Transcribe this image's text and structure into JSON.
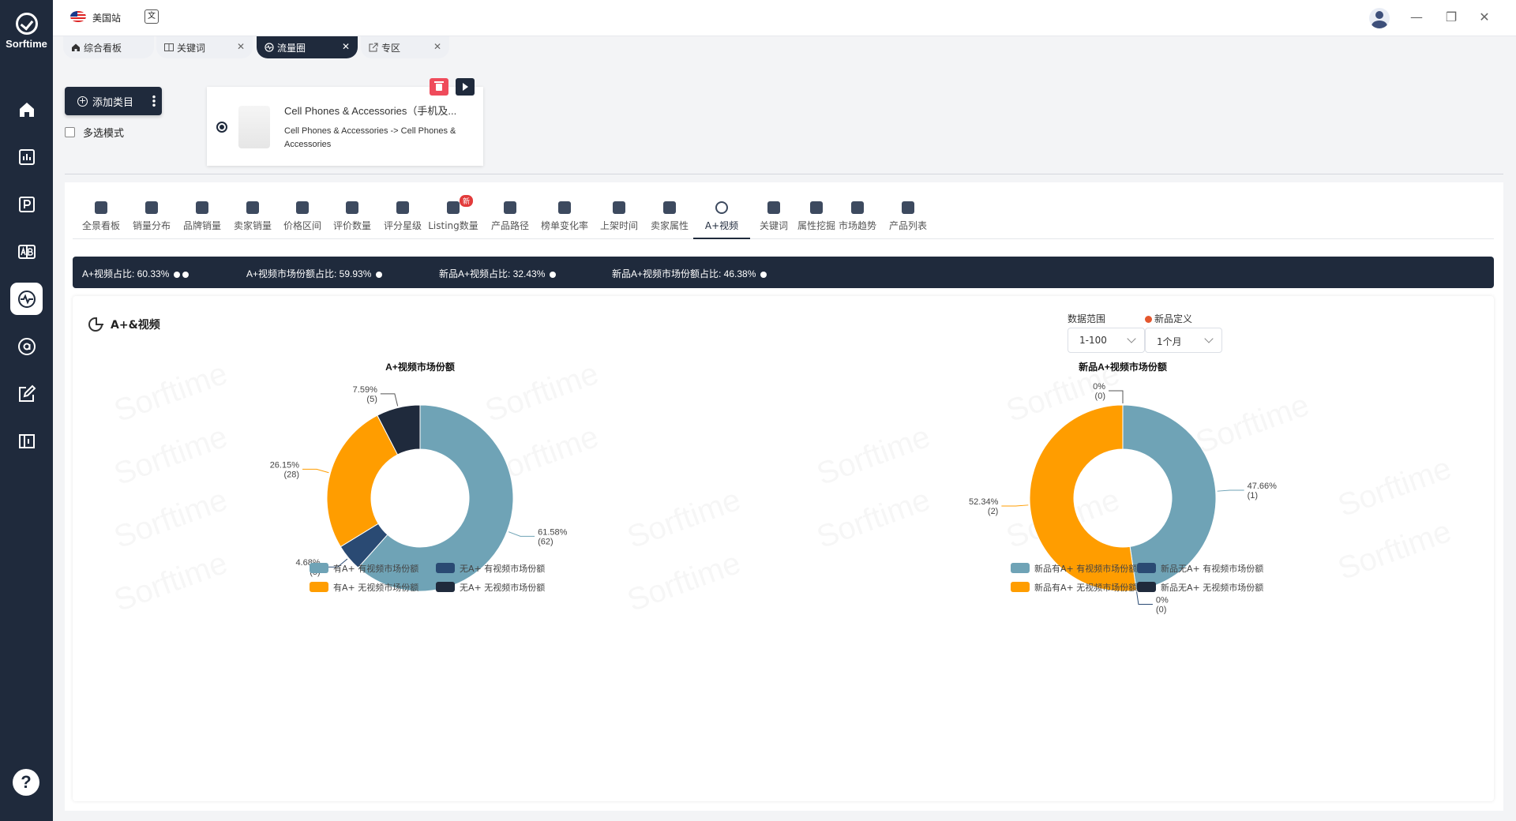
{
  "sidebar": {
    "brand": "Sorftime",
    "help": "?",
    "items": [
      {
        "icon": "home-icon"
      },
      {
        "icon": "bar-chart-icon"
      },
      {
        "icon": "p-icon"
      },
      {
        "icon": "ab-compare-icon"
      },
      {
        "icon": "pulse-icon",
        "active": true
      },
      {
        "icon": "amazon-icon"
      },
      {
        "icon": "edit-icon"
      },
      {
        "icon": "book-icon"
      }
    ]
  },
  "topbar": {
    "site": "美国站",
    "window": {
      "minimize": "—",
      "restore": "❐",
      "close": "✕"
    }
  },
  "tabs": [
    {
      "label": "综合看板",
      "closable": false
    },
    {
      "label": "关键词",
      "closable": true
    },
    {
      "label": "流量圈",
      "closable": true,
      "active": true
    },
    {
      "label": "专区",
      "closable": true
    }
  ],
  "category": {
    "add_button": "添加类目",
    "multi_select": "多选模式",
    "card_title": "Cell Phones & Accessories（手机及...",
    "card_path": "Cell Phones & Accessories -> Cell Phones & Accessories"
  },
  "func_tabs": [
    {
      "label": "全景看板"
    },
    {
      "label": "销量分布"
    },
    {
      "label": "品牌销量"
    },
    {
      "label": "卖家销量"
    },
    {
      "label": "价格区间"
    },
    {
      "label": "评价数量"
    },
    {
      "label": "评分星级"
    },
    {
      "label": "Listing数量",
      "badge": "新"
    },
    {
      "label": "产品路径"
    },
    {
      "label": "榜单变化率"
    },
    {
      "label": "上架时间"
    },
    {
      "label": "卖家属性"
    },
    {
      "label": "A+视频",
      "active": true
    },
    {
      "label": "关键词"
    },
    {
      "label": "属性挖掘"
    },
    {
      "label": "市场趋势"
    },
    {
      "label": "产品列表"
    }
  ],
  "stats": [
    {
      "text": "A+视频占比: 60.33%"
    },
    {
      "text": "A+视频市场份额占比: 59.93%"
    },
    {
      "text": "新品A+视频占比: 32.43%"
    },
    {
      "text": "新品A+视频市场份额占比: 46.38%"
    }
  ],
  "section_title": "A+&视频",
  "filters": {
    "range_label": "数据范围",
    "range_value": "1-100",
    "new_label": "新品定义",
    "new_value": "1个月"
  },
  "watermark": "Sorftime",
  "colors": {
    "steel": "#6fa3b6",
    "navy_blue": "#2a4a73",
    "orange": "#ff9d00",
    "dark_navy": "#1f2a3c"
  },
  "chart_data": [
    {
      "type": "pie",
      "title": "A+视频市场份额",
      "slices": [
        {
          "name": "有A+ 有视频市场份额",
          "value": 61.58,
          "count": 62,
          "label": "61.58%",
          "count_label": "(62)"
        },
        {
          "name": "无A+ 有视频市场份额",
          "value": 4.68,
          "count": 5,
          "label": "4.68%",
          "count_label": "(5)"
        },
        {
          "name": "有A+ 无视频市场份额",
          "value": 26.15,
          "count": 28,
          "label": "26.15%",
          "count_label": "(28)"
        },
        {
          "name": "无A+ 无视频市场份额",
          "value": 7.59,
          "count": 5,
          "label": "7.59%",
          "count_label": "(5)"
        }
      ]
    },
    {
      "type": "pie",
      "title": "新品A+视频市场份额",
      "slices": [
        {
          "name": "新品有A+ 有视频市场份额",
          "value": 47.66,
          "count": 1,
          "label": "47.66%",
          "count_label": "(1)"
        },
        {
          "name": "新品无A+ 有视频市场份额",
          "value": 0,
          "count": 0,
          "label": "0%",
          "count_label": "(0)"
        },
        {
          "name": "新品有A+ 无视频市场份额",
          "value": 52.34,
          "count": 2,
          "label": "52.34%",
          "count_label": "(2)"
        },
        {
          "name": "新品无A+ 无视频市场份额",
          "value": 0,
          "count": 0,
          "label": "0%",
          "count_label": "(0)"
        }
      ]
    }
  ]
}
